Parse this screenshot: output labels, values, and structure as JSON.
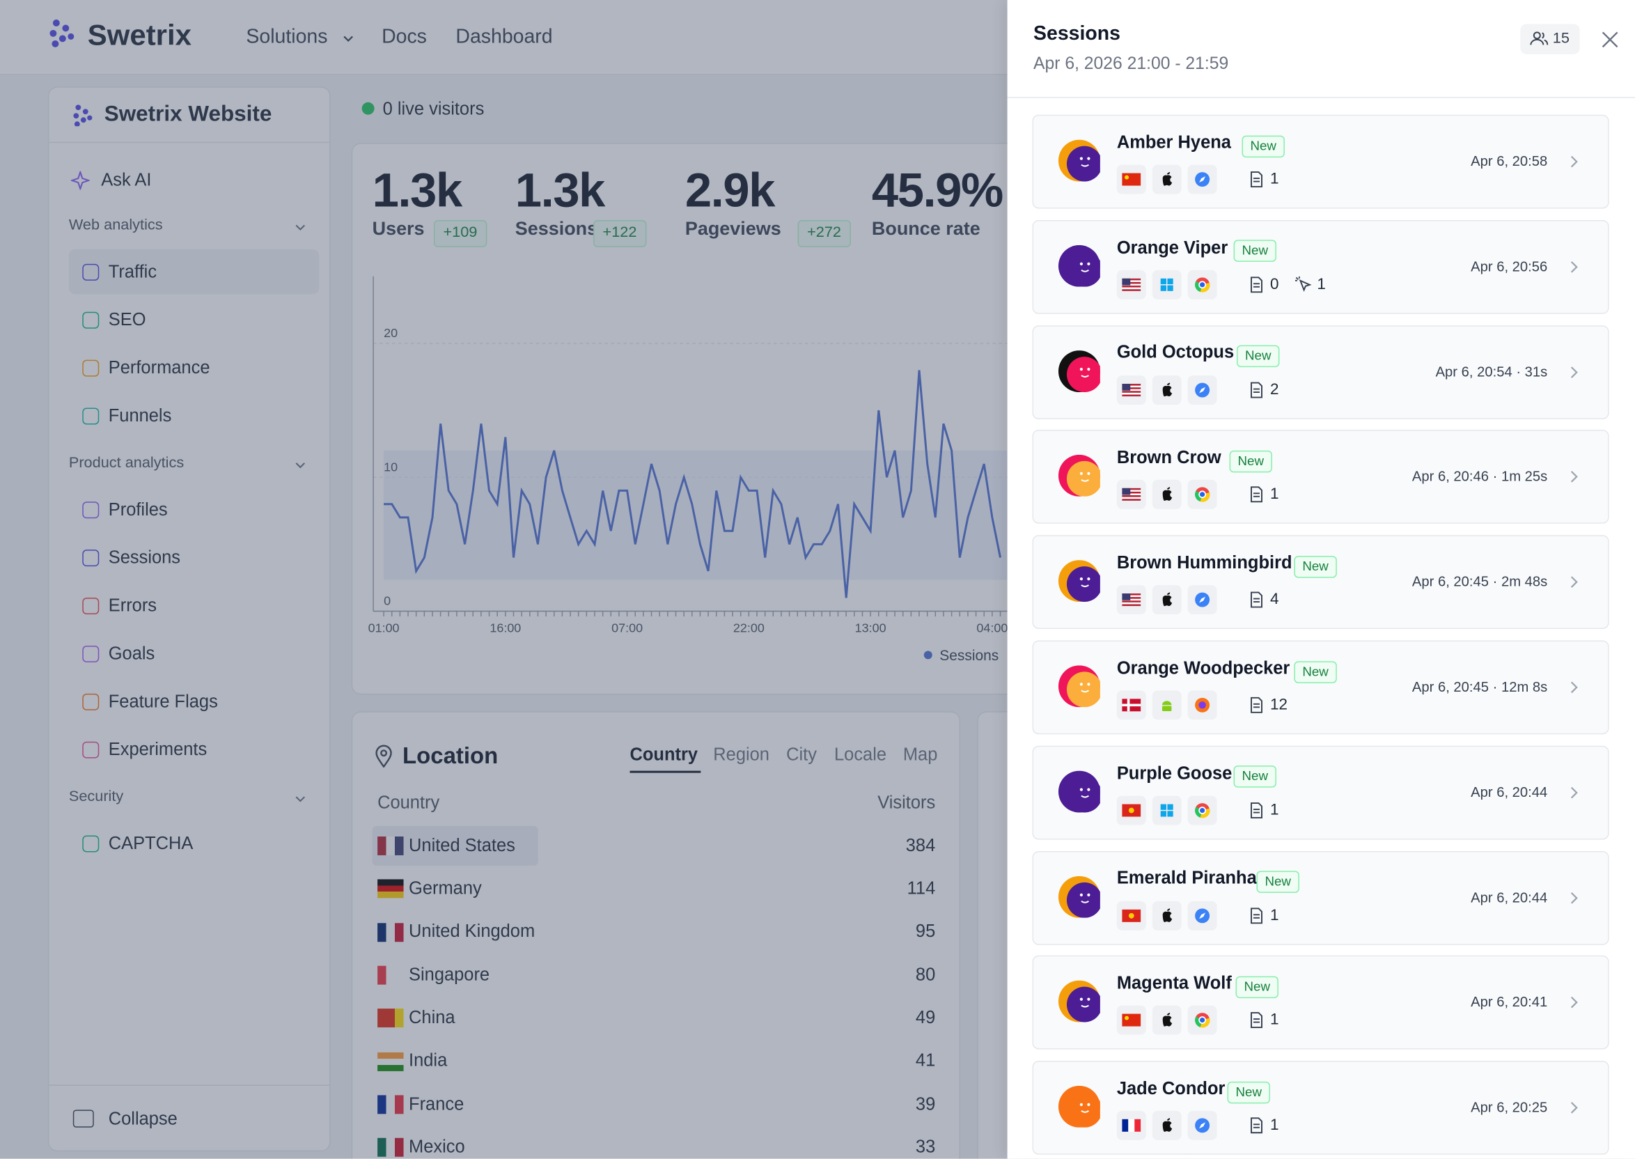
{
  "nav": {
    "brand": "Swetrix",
    "links": [
      "Solutions",
      "Docs",
      "Dashboard"
    ]
  },
  "sidebar": {
    "project": "Swetrix Website",
    "ask": "Ask AI",
    "sections": [
      {
        "title": "Web analytics",
        "items": [
          "Traffic",
          "SEO",
          "Performance",
          "Funnels"
        ]
      },
      {
        "title": "Product analytics",
        "items": [
          "Profiles",
          "Sessions",
          "Errors",
          "Goals",
          "Feature Flags",
          "Experiments"
        ]
      },
      {
        "title": "Security",
        "items": [
          "CAPTCHA"
        ]
      }
    ],
    "collapse": "Collapse"
  },
  "live": "0 live visitors",
  "stats": [
    {
      "value": "1.3k",
      "label": "Users",
      "delta": "+109"
    },
    {
      "value": "1.3k",
      "label": "Sessions",
      "delta": "+122"
    },
    {
      "value": "2.9k",
      "label": "Pageviews",
      "delta": "+272"
    },
    {
      "value": "45.9%",
      "label": "Bounce rate"
    }
  ],
  "chart": {
    "type": "line",
    "ylim": [
      0,
      25
    ],
    "yticks": [
      0,
      10,
      20
    ],
    "x": [
      "01:00",
      null,
      null,
      null,
      null,
      null,
      null,
      null,
      null,
      null,
      null,
      null,
      null,
      null,
      null,
      "16:00",
      null,
      null,
      null,
      null,
      null,
      null,
      null,
      null,
      null,
      null,
      null,
      null,
      null,
      null,
      "07:00",
      null,
      null,
      null,
      null,
      null,
      null,
      null,
      null,
      null,
      null,
      null,
      null,
      null,
      null,
      "22:00",
      null,
      null,
      null,
      null,
      null,
      null,
      null,
      null,
      null,
      null,
      null,
      null,
      null,
      null,
      "13:00",
      null,
      null,
      null,
      null,
      null,
      null,
      null,
      null,
      null,
      null,
      null,
      null,
      null,
      null,
      "04:00",
      null
    ],
    "series": [
      {
        "name": "Sessions",
        "color": "#4f6fd0",
        "values": [
          8,
          8,
          7,
          7,
          3,
          4,
          7,
          14,
          9,
          8,
          5,
          9,
          14,
          9,
          8,
          13,
          4,
          9,
          8,
          5,
          10,
          12,
          9,
          7,
          5,
          6,
          5,
          9,
          6,
          9,
          9,
          5,
          8,
          11,
          9,
          5,
          8,
          10,
          8,
          5,
          3,
          9,
          6,
          6,
          10,
          9,
          9,
          4,
          9,
          8,
          5,
          7,
          4,
          5,
          5,
          6,
          8,
          1,
          8,
          7,
          6,
          15,
          10,
          12,
          7,
          9,
          18,
          11,
          7,
          14,
          12,
          4,
          7,
          9,
          11,
          7,
          4
        ]
      }
    ]
  },
  "location": {
    "title": "Location",
    "tabs": [
      "Country",
      "Region",
      "City",
      "Locale",
      "Map"
    ],
    "header": [
      "Country",
      "Visitors"
    ],
    "rows": [
      [
        "United States",
        384
      ],
      [
        "Germany",
        114
      ],
      [
        "United Kingdom",
        95
      ],
      [
        "Singapore",
        80
      ],
      [
        "China",
        49
      ],
      [
        "India",
        41
      ],
      [
        "France",
        39
      ],
      [
        "Mexico",
        33
      ]
    ]
  },
  "panel": {
    "title": "Sessions",
    "subtitle": "Apr 6, 2026 21:00 - 21:59",
    "count": 15,
    "sessions": [
      {
        "name": "Amber Hyena",
        "badge": "New",
        "country": "CN",
        "os": "apple",
        "browser": "safari",
        "pageviews": 1,
        "time": "Apr 6, 20:58",
        "avatar": [
          "#f59e0b",
          "#4c1d95"
        ]
      },
      {
        "name": "Orange Viper",
        "badge": "New",
        "country": "US",
        "os": "windows",
        "browser": "chrome",
        "pageviews": 0,
        "events": 1,
        "time": "Apr 6, 20:56",
        "avatar": [
          "#4c1d95",
          "#4c1d95"
        ]
      },
      {
        "name": "Gold Octopus",
        "badge": "New",
        "country": "US",
        "os": "apple",
        "browser": "safari",
        "pageviews": 2,
        "time": "Apr 6, 20:54 · 31s",
        "avatar": [
          "#111111",
          "#f0145a"
        ]
      },
      {
        "name": "Brown Crow",
        "badge": "New",
        "country": "US",
        "os": "apple",
        "browser": "chrome",
        "pageviews": 1,
        "time": "Apr 6, 20:46 · 1m 25s",
        "avatar": [
          "#f0145a",
          "#fbae3c"
        ]
      },
      {
        "name": "Brown Hummingbird",
        "badge": "New",
        "country": "US",
        "os": "apple",
        "browser": "safari",
        "pageviews": 4,
        "time": "Apr 6, 20:45 · 2m 48s",
        "avatar": [
          "#f59e0b",
          "#4c1d95"
        ]
      },
      {
        "name": "Orange Woodpecker",
        "badge": "New",
        "country": "DK",
        "os": "android",
        "browser": "firefox",
        "pageviews": 12,
        "time": "Apr 6, 20:45 · 12m 8s",
        "avatar": [
          "#f0145a",
          "#fbae3c"
        ]
      },
      {
        "name": "Purple Goose",
        "badge": "New",
        "country": "VN",
        "os": "windows",
        "browser": "chrome",
        "pageviews": 1,
        "time": "Apr 6, 20:44",
        "avatar": [
          "#4c1d95",
          "#4c1d95"
        ]
      },
      {
        "name": "Emerald Piranha",
        "badge": "New",
        "country": "VN",
        "os": "apple",
        "browser": "safari",
        "pageviews": 1,
        "time": "Apr 6, 20:44",
        "avatar": [
          "#f59e0b",
          "#4c1d95"
        ]
      },
      {
        "name": "Magenta Wolf",
        "badge": "New",
        "country": "CN",
        "os": "apple",
        "browser": "chrome",
        "pageviews": 1,
        "time": "Apr 6, 20:41",
        "avatar": [
          "#f59e0b",
          "#4c1d95"
        ]
      },
      {
        "name": "Jade Condor",
        "badge": "New",
        "country": "FR",
        "os": "apple",
        "browser": "safari",
        "pageviews": 1,
        "time": "Apr 6, 20:25",
        "avatar": [
          "#f97316",
          "#f97316"
        ]
      }
    ]
  }
}
